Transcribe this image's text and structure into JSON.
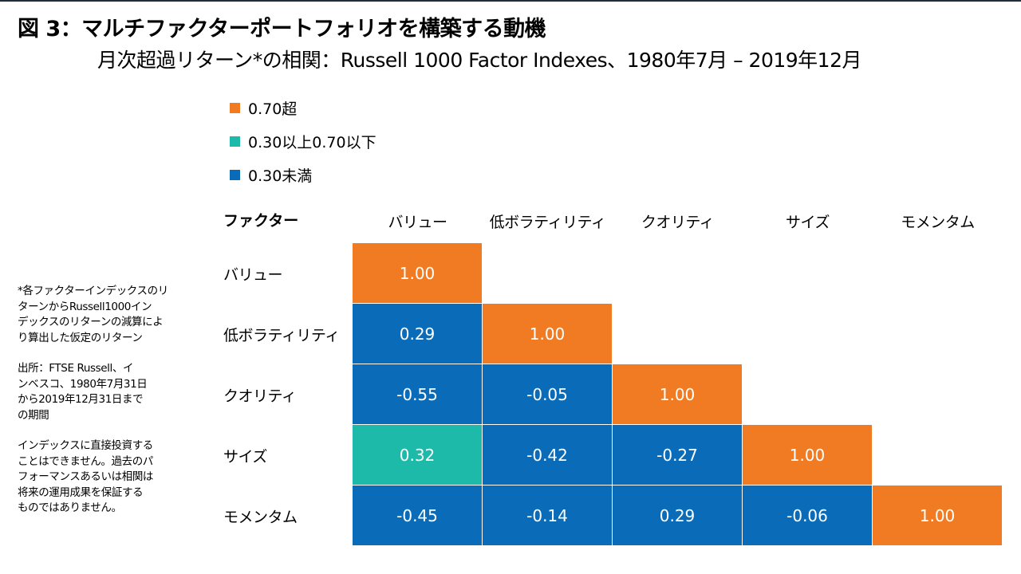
{
  "header": {
    "title": "図 3：マルチファクターポートフォリオを構築する動機",
    "subtitle": "月次超過リターン*の相関：Russell 1000 Factor Indexes、1980年7月 – 2019年12月"
  },
  "legend": [
    {
      "label": "0.70超",
      "color": "#f07b22"
    },
    {
      "label": "0.30以上0.70以下",
      "color": "#1ebaa9"
    },
    {
      "label": "0.30未満",
      "color": "#0a6cb8"
    }
  ],
  "notes": [
    "*各ファクターインデックスのリ\nターンからRussell1000イン\nデックスのリターンの減算によ\nり算出した仮定のリターン",
    "出所：FTSE Russell、イ\nンベスコ、1980年7月31日\nから2019年12月31日まで\nの期間",
    "インデックスに直接投資する\nことはできません。過去のパ\nフォーマンスあるいは相関は\n将来の運用成果を保証する\nものではありません。"
  ],
  "chart_data": {
    "type": "heatmap",
    "title": "図 3：マルチファクターポートフォリオを構築する動機",
    "subtitle": "月次超過リターン*の相関：Russell 1000 Factor Indexes、1980年7月 – 2019年12月",
    "row_header_label": "ファクター",
    "columns": [
      "バリュー",
      "低ボラティリティ",
      "クオリティ",
      "サイズ",
      "モメンタム"
    ],
    "rows": [
      "バリュー",
      "低ボラティリティ",
      "クオリティ",
      "サイズ",
      "モメンタム"
    ],
    "values": [
      [
        "1.00",
        null,
        null,
        null,
        null
      ],
      [
        "0.29",
        "1.00",
        null,
        null,
        null
      ],
      [
        "-0.55",
        "-0.05",
        "1.00",
        null,
        null
      ],
      [
        "0.32",
        "-0.42",
        "-0.27",
        "1.00",
        null
      ],
      [
        "-0.45",
        "-0.14",
        "0.29",
        "-0.06",
        "1.00"
      ]
    ],
    "color_scale": [
      {
        "range": "0.70超",
        "color": "#f07b22"
      },
      {
        "range": "0.30以上0.70以下",
        "color": "#1ebaa9"
      },
      {
        "range": "0.30未満",
        "color": "#0a6cb8"
      }
    ]
  }
}
